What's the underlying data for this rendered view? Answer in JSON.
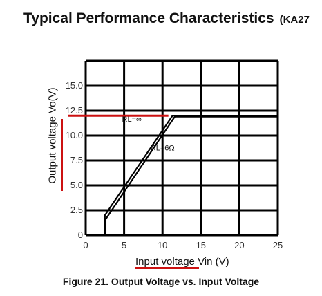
{
  "header": {
    "title": "Typical Performance Characteristics",
    "title_suffix": "(KA27"
  },
  "caption": "Figure 21. Output Voltage vs. Input Voltage",
  "colors": {
    "highlight": "#cc1111",
    "grid": "#000000",
    "curve": "#000000"
  },
  "chart_data": {
    "type": "line",
    "title": "",
    "xlabel": "Input voltage Vin (V)",
    "ylabel": "Output voltage Vo(V)",
    "xlim": [
      0,
      25
    ],
    "ylim": [
      0,
      17.5
    ],
    "xticks": [
      "0",
      "5",
      "10",
      "15",
      "20",
      "25"
    ],
    "yticks": [
      "0",
      "2.5",
      "5.0",
      "7.5",
      "10.0",
      "12.5",
      "15.0"
    ],
    "grid": true,
    "series": [
      {
        "name": "RL=∞",
        "x": [
          2.5,
          2.5,
          11.3,
          25
        ],
        "y": [
          0,
          2.0,
          12.0,
          12.0
        ]
      },
      {
        "name": "RL=6Ω",
        "x": [
          2.6,
          2.6,
          11.6,
          25
        ],
        "y": [
          0,
          1.6,
          11.9,
          11.9
        ]
      }
    ],
    "annotations": [
      {
        "text": "RL=∞",
        "x": 6.0,
        "y": 11.4
      },
      {
        "text": "RL=6Ω",
        "x": 10.0,
        "y": 8.5
      }
    ]
  }
}
